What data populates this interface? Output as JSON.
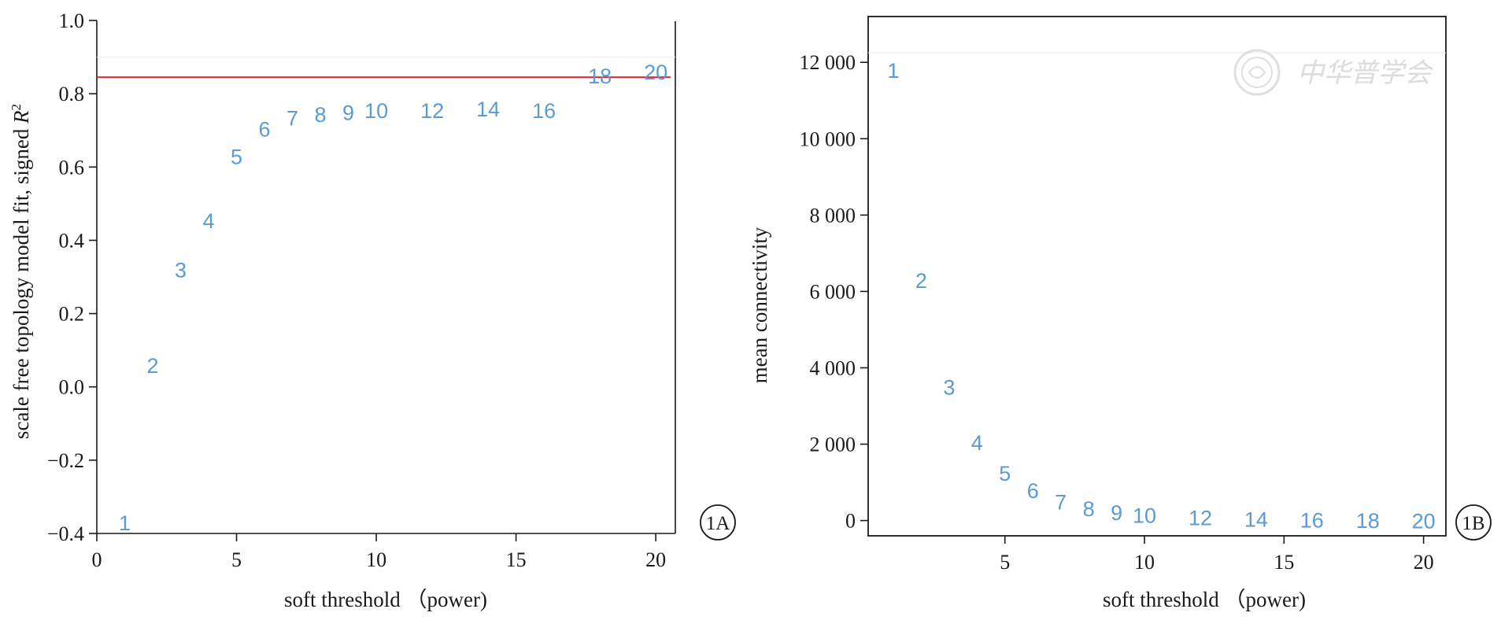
{
  "colors": {
    "point_label": "#5b9bd5",
    "threshold_line": "#e8262d",
    "axis": "#1a1a1a"
  },
  "watermark": {
    "text": "中华普学会",
    "icon": "seal-icon"
  },
  "chart_data": [
    {
      "panel": "1A",
      "type": "scatter",
      "title": "",
      "xlabel": "soft threshold （power)",
      "ylabel": "scale free topology model fit, signed R²",
      "xlim": [
        0,
        20.7
      ],
      "ylim": [
        -0.4,
        1.0
      ],
      "xticks": [
        0,
        5,
        10,
        15,
        20
      ],
      "yticks": [
        -0.4,
        -0.2,
        0.0,
        0.2,
        0.4,
        0.6,
        0.8,
        1.0
      ],
      "ytick_labels": [
        "−0.4",
        "−0.2",
        "0.0",
        "0.2",
        "0.4",
        "0.6",
        "0.8",
        "1.0"
      ],
      "reference_line_y": 0.845,
      "grid": false,
      "points": [
        {
          "x": 1,
          "y": -0.37,
          "label": "1"
        },
        {
          "x": 2,
          "y": 0.06,
          "label": "2"
        },
        {
          "x": 3,
          "y": 0.32,
          "label": "3"
        },
        {
          "x": 4,
          "y": 0.455,
          "label": "4"
        },
        {
          "x": 5,
          "y": 0.63,
          "label": "5"
        },
        {
          "x": 6,
          "y": 0.705,
          "label": "6"
        },
        {
          "x": 7,
          "y": 0.735,
          "label": "7"
        },
        {
          "x": 8,
          "y": 0.745,
          "label": "8"
        },
        {
          "x": 9,
          "y": 0.75,
          "label": "9"
        },
        {
          "x": 10,
          "y": 0.755,
          "label": "10"
        },
        {
          "x": 12,
          "y": 0.755,
          "label": "12"
        },
        {
          "x": 14,
          "y": 0.76,
          "label": "14"
        },
        {
          "x": 16,
          "y": 0.755,
          "label": "16"
        },
        {
          "x": 18,
          "y": 0.85,
          "label": "18"
        },
        {
          "x": 20,
          "y": 0.86,
          "label": "20"
        }
      ]
    },
    {
      "panel": "1B",
      "type": "scatter",
      "title": "",
      "xlabel": "soft threshold （power)",
      "ylabel": "mean connectivity",
      "xlim": [
        0.1,
        20.8
      ],
      "ylim": [
        -400,
        13200
      ],
      "xticks": [
        5,
        10,
        15,
        20
      ],
      "yticks": [
        0,
        2000,
        4000,
        6000,
        8000,
        10000,
        12000
      ],
      "ytick_labels": [
        "0",
        "2 000",
        "4 000",
        "6 000",
        "8 000",
        "10 000",
        "12 000"
      ],
      "grid": false,
      "points": [
        {
          "x": 1,
          "y": 11800,
          "label": "1"
        },
        {
          "x": 2,
          "y": 6300,
          "label": "2"
        },
        {
          "x": 3,
          "y": 3500,
          "label": "3"
        },
        {
          "x": 4,
          "y": 2050,
          "label": "4"
        },
        {
          "x": 5,
          "y": 1250,
          "label": "5"
        },
        {
          "x": 6,
          "y": 800,
          "label": "6"
        },
        {
          "x": 7,
          "y": 500,
          "label": "7"
        },
        {
          "x": 8,
          "y": 320,
          "label": "8"
        },
        {
          "x": 9,
          "y": 220,
          "label": "9"
        },
        {
          "x": 10,
          "y": 150,
          "label": "10"
        },
        {
          "x": 12,
          "y": 80,
          "label": "12"
        },
        {
          "x": 14,
          "y": 40,
          "label": "14"
        },
        {
          "x": 16,
          "y": 20,
          "label": "16"
        },
        {
          "x": 18,
          "y": 10,
          "label": "18"
        },
        {
          "x": 20,
          "y": 5,
          "label": "20"
        }
      ]
    }
  ]
}
